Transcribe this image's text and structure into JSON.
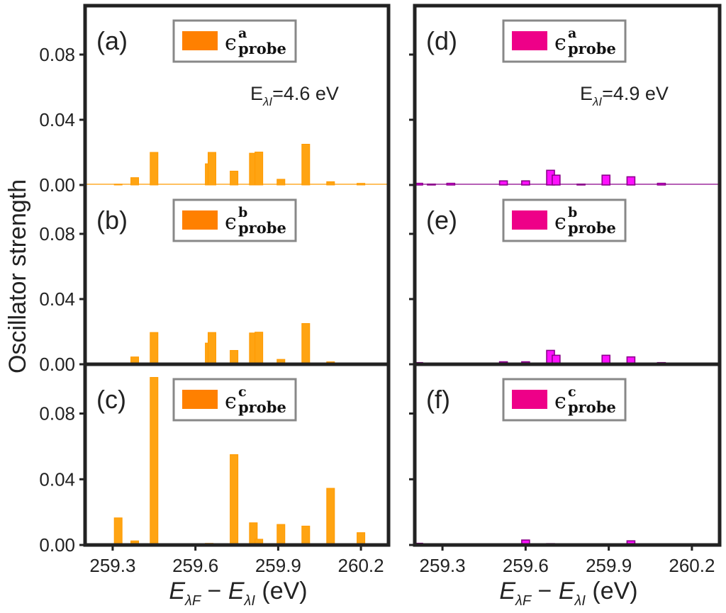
{
  "chart_data": {
    "type": "bar",
    "ylabel": "Oscillator strength",
    "xlabel": {
      "main": "E",
      "sub1": "λF",
      "minus": " − ",
      "sub2": "λI",
      "unit": " (eV)"
    },
    "xlim": [
      259.2,
      260.3
    ],
    "ylim": [
      0.0,
      0.11
    ],
    "xticks": [
      "259.3",
      "259.6",
      "259.9",
      "260.2"
    ],
    "yticks": [
      "0.00",
      "0.04",
      "0.08"
    ],
    "columns": [
      {
        "color_fill": "#ffa412",
        "color_edge": "#ff9a00",
        "legend_patch": "#ff8000",
        "annotation": {
          "prefix": "E",
          "sub": "λI",
          "value": "=4.6 eV"
        },
        "panels": [
          {
            "label": "(a)",
            "legend": {
              "symbol": "ϵ",
              "sup": "a",
              "sub": "probe"
            },
            "bars": [
              [
                259.32,
                0.0005
              ],
              [
                259.38,
                0.0045
              ],
              [
                259.45,
                0.02
              ],
              [
                259.65,
                0.013
              ],
              [
                259.66,
                0.02
              ],
              [
                259.74,
                0.0085
              ],
              [
                259.81,
                0.0195
              ],
              [
                259.83,
                0.0202
              ],
              [
                259.91,
                0.0035
              ],
              [
                260.0,
                0.025
              ],
              [
                260.09,
                0.002
              ],
              [
                260.2,
                0.001
              ]
            ]
          },
          {
            "label": "(b)",
            "legend": {
              "symbol": "ϵ",
              "sup": "b",
              "sub": "probe"
            },
            "bars": [
              [
                259.38,
                0.0045
              ],
              [
                259.45,
                0.0195
              ],
              [
                259.65,
                0.013
              ],
              [
                259.66,
                0.0195
              ],
              [
                259.74,
                0.0085
              ],
              [
                259.81,
                0.0192
              ],
              [
                259.83,
                0.0197
              ],
              [
                259.91,
                0.003
              ],
              [
                260.0,
                0.025
              ],
              [
                260.09,
                0.0015
              ]
            ]
          },
          {
            "label": "(c)",
            "legend": {
              "symbol": "ϵ",
              "sup": "c",
              "sub": "probe"
            },
            "bars": [
              [
                259.32,
                0.0165
              ],
              [
                259.38,
                0.0025
              ],
              [
                259.45,
                0.102
              ],
              [
                259.65,
                0.001
              ],
              [
                259.74,
                0.055
              ],
              [
                259.81,
                0.0135
              ],
              [
                259.83,
                0.0035
              ],
              [
                259.91,
                0.0125
              ],
              [
                260.0,
                0.0115
              ],
              [
                260.09,
                0.0345
              ],
              [
                260.2,
                0.0075
              ]
            ]
          }
        ]
      },
      {
        "color_fill": "#ff10ff",
        "color_edge": "#8b008b",
        "legend_patch": "#ee0088",
        "annotation": {
          "prefix": "E",
          "sub": "λI",
          "value": "=4.9 eV"
        },
        "panels": [
          {
            "label": "(d)",
            "legend": {
              "symbol": "ϵ",
              "sup": "a",
              "sub": "probe"
            },
            "bars": [
              [
                259.2,
                0.001
              ],
              [
                259.26,
                0.0005
              ],
              [
                259.33,
                0.001
              ],
              [
                259.52,
                0.0025
              ],
              [
                259.6,
                0.0025
              ],
              [
                259.69,
                0.009
              ],
              [
                259.71,
                0.006
              ],
              [
                259.8,
                0.0005
              ],
              [
                259.89,
                0.006
              ],
              [
                259.98,
                0.005
              ],
              [
                260.09,
                0.001
              ]
            ]
          },
          {
            "label": "(e)",
            "legend": {
              "symbol": "ϵ",
              "sup": "b",
              "sub": "probe"
            },
            "bars": [
              [
                259.2,
                0.001
              ],
              [
                259.33,
                0.0005
              ],
              [
                259.52,
                0.0015
              ],
              [
                259.6,
                0.0015
              ],
              [
                259.69,
                0.0085
              ],
              [
                259.71,
                0.0055
              ],
              [
                259.89,
                0.0055
              ],
              [
                259.98,
                0.0045
              ],
              [
                260.09,
                0.001
              ]
            ]
          },
          {
            "label": "(f)",
            "legend": {
              "symbol": "ϵ",
              "sup": "c",
              "sub": "probe"
            },
            "bars": [
              [
                259.2,
                0.001
              ],
              [
                259.6,
                0.003
              ],
              [
                259.69,
                0.0008
              ],
              [
                259.98,
                0.0025
              ]
            ]
          }
        ]
      }
    ]
  }
}
